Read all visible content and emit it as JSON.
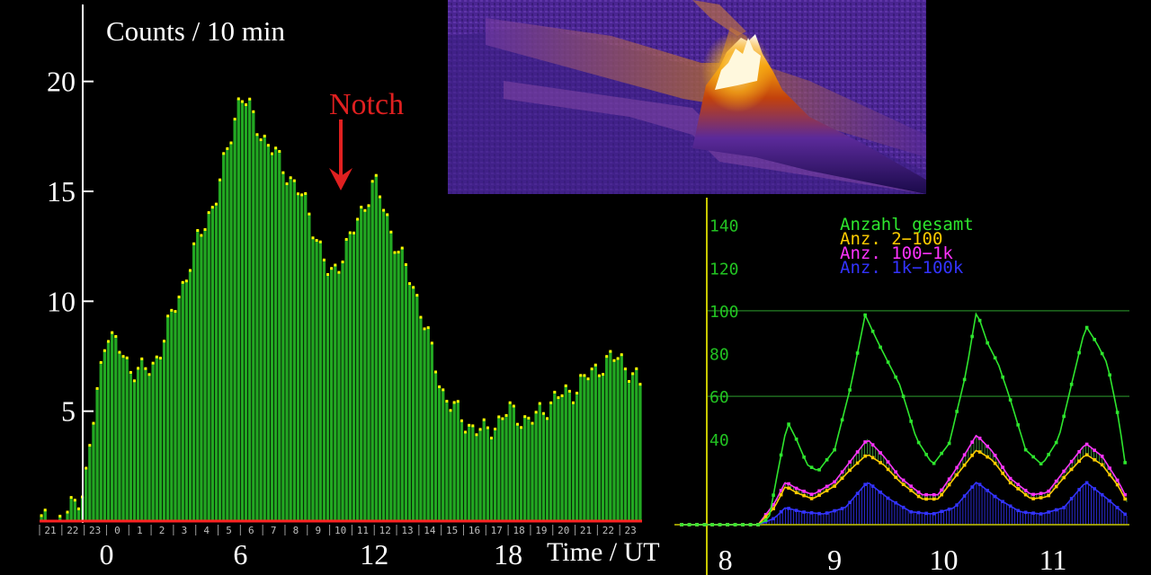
{
  "chart_data": [
    {
      "type": "bar",
      "ylabel": "Counts / 10 min",
      "xlabel": "Time / UT",
      "annotation": "Notch",
      "xlim": [
        -3,
        24
      ],
      "ylim": [
        0,
        23.5
      ],
      "yticks": [
        "5",
        "10",
        "15",
        "20"
      ],
      "xticks": [
        "0",
        "6",
        "12",
        "18"
      ],
      "hour_labels": [
        "21",
        "22",
        "23",
        "0",
        "1",
        "2",
        "3",
        "4",
        "5",
        "6",
        "7",
        "8",
        "9",
        "10",
        "11",
        "12",
        "13",
        "14",
        "15",
        "16",
        "17",
        "18",
        "19",
        "20",
        "21",
        "22",
        "23",
        "0"
      ],
      "hourly_values": [
        0,
        0,
        1.5,
        8.8,
        7.0,
        6.8,
        9.5,
        12.5,
        15.0,
        19.5,
        17.5,
        16.0,
        14.3,
        11.0,
        13.0,
        15.5,
        12.5,
        10.0,
        6.0,
        4.5,
        4.0,
        5.0,
        4.5,
        5.5,
        6.0,
        7.0,
        7.5,
        6.0
      ],
      "grid": false,
      "colors": {
        "bars": "#22a822",
        "tops": "#ffff00",
        "baseline": "#ff2222",
        "annotation": "#e02020"
      }
    },
    {
      "type": "line",
      "legend": [
        "Anzahl gesamt",
        "Anz. 2−100",
        "Anz. 100−1k",
        "Anz. 1k−100k"
      ],
      "yticks": [
        "40",
        "60",
        "80",
        "100",
        "120",
        "140"
      ],
      "xticks": [
        "8",
        "9",
        "10",
        "11"
      ],
      "xlim": [
        7.55,
        11.7
      ],
      "ylim": [
        0,
        155
      ],
      "series": [
        {
          "name": "Anzahl gesamt",
          "color": "#2ee62e",
          "x": [
            7.6,
            8.3,
            8.4,
            8.5,
            8.57,
            8.65,
            8.75,
            8.85,
            9.0,
            9.15,
            9.28,
            9.4,
            9.5,
            9.6,
            9.75,
            9.9,
            10.05,
            10.2,
            10.3,
            10.4,
            10.5,
            10.6,
            10.75,
            10.9,
            11.05,
            11.2,
            11.3,
            11.4,
            11.5,
            11.6,
            11.68
          ],
          "y": [
            0,
            0,
            3,
            30,
            48,
            40,
            28,
            25,
            35,
            65,
            98,
            85,
            75,
            65,
            40,
            28,
            38,
            70,
            100,
            85,
            75,
            60,
            35,
            28,
            40,
            72,
            93,
            85,
            75,
            50,
            22
          ]
        },
        {
          "name": "Anz. 2−100",
          "color": "#ffcc00",
          "x": [
            7.6,
            8.3,
            8.45,
            8.55,
            8.65,
            8.8,
            9.0,
            9.15,
            9.3,
            9.45,
            9.6,
            9.8,
            9.95,
            10.1,
            10.3,
            10.45,
            10.6,
            10.8,
            10.95,
            11.1,
            11.3,
            11.45,
            11.6,
            11.68
          ],
          "y": [
            0,
            0,
            8,
            18,
            15,
            12,
            18,
            26,
            33,
            28,
            20,
            12,
            12,
            22,
            35,
            30,
            20,
            12,
            13,
            22,
            33,
            28,
            18,
            10
          ]
        },
        {
          "name": "Anz. 100−1k",
          "color": "#ff33ff",
          "x": [
            7.6,
            8.3,
            8.45,
            8.55,
            8.65,
            8.8,
            9.0,
            9.15,
            9.3,
            9.45,
            9.6,
            9.8,
            9.95,
            10.1,
            10.3,
            10.45,
            10.6,
            10.8,
            10.95,
            11.1,
            11.3,
            11.45,
            11.6,
            11.68
          ],
          "y": [
            0,
            0,
            10,
            20,
            17,
            14,
            20,
            30,
            40,
            32,
            22,
            14,
            14,
            25,
            42,
            34,
            22,
            14,
            15,
            25,
            38,
            32,
            20,
            12
          ]
        },
        {
          "name": "Anz. 1k−100k",
          "color": "#3333ff",
          "x": [
            7.6,
            8.3,
            8.45,
            8.55,
            8.7,
            8.9,
            9.1,
            9.3,
            9.5,
            9.7,
            9.9,
            10.1,
            10.3,
            10.5,
            10.7,
            10.9,
            11.1,
            11.3,
            11.5,
            11.68
          ],
          "y": [
            0,
            0,
            3,
            8,
            6,
            5,
            8,
            20,
            12,
            6,
            5,
            8,
            20,
            12,
            6,
            5,
            8,
            20,
            12,
            4
          ]
        }
      ],
      "reference_lines": [
        60,
        100
      ],
      "colors": {
        "axis": "#c8c800",
        "text": "#22c322",
        "refline": "#1f6b1f"
      }
    }
  ]
}
